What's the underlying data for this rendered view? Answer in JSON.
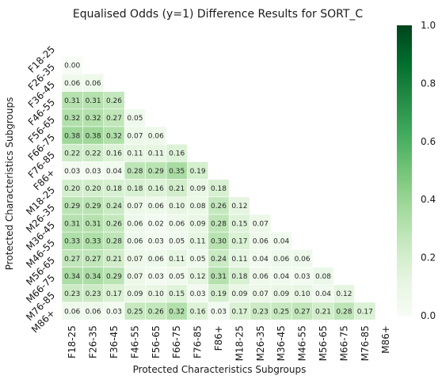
{
  "chart_data": {
    "type": "heatmap",
    "title": "Equalised Odds (y=1) Difference Results for SORT_C",
    "xlabel": "Protected Characteristics Subgroups",
    "ylabel": "Protected Characteristics Subgroups",
    "categories": [
      "F18-25",
      "F26-35",
      "F36-45",
      "F46-55",
      "F56-65",
      "F66-75",
      "F76-85",
      "F86+",
      "M18-25",
      "M26-35",
      "M36-45",
      "M46-55",
      "M56-65",
      "M66-75",
      "M76-85",
      "M86+"
    ],
    "mask": "upper-triangle-including-diagonal",
    "values": [
      [],
      [
        0.0
      ],
      [
        0.06,
        0.06
      ],
      [
        0.31,
        0.31,
        0.26
      ],
      [
        0.32,
        0.32,
        0.27,
        0.05
      ],
      [
        0.38,
        0.38,
        0.32,
        0.07,
        0.06
      ],
      [
        0.22,
        0.22,
        0.16,
        0.11,
        0.11,
        0.16
      ],
      [
        0.03,
        0.03,
        0.04,
        0.28,
        0.29,
        0.35,
        0.19
      ],
      [
        0.2,
        0.2,
        0.18,
        0.18,
        0.16,
        0.21,
        0.09,
        0.18
      ],
      [
        0.29,
        0.29,
        0.24,
        0.07,
        0.06,
        0.1,
        0.08,
        0.26,
        0.12
      ],
      [
        0.31,
        0.31,
        0.26,
        0.06,
        0.02,
        0.06,
        0.09,
        0.28,
        0.15,
        0.07
      ],
      [
        0.33,
        0.33,
        0.28,
        0.06,
        0.03,
        0.05,
        0.11,
        0.3,
        0.17,
        0.06,
        0.04
      ],
      [
        0.27,
        0.27,
        0.21,
        0.07,
        0.06,
        0.11,
        0.05,
        0.24,
        0.11,
        0.04,
        0.06,
        0.06
      ],
      [
        0.34,
        0.34,
        0.29,
        0.07,
        0.03,
        0.05,
        0.12,
        0.31,
        0.18,
        0.06,
        0.04,
        0.03,
        0.08
      ],
      [
        0.23,
        0.23,
        0.17,
        0.09,
        0.1,
        0.15,
        0.03,
        0.19,
        0.09,
        0.07,
        0.09,
        0.1,
        0.04,
        0.12
      ],
      [
        0.06,
        0.06,
        0.03,
        0.25,
        0.26,
        0.32,
        0.16,
        0.03,
        0.17,
        0.23,
        0.25,
        0.27,
        0.21,
        0.28,
        0.17
      ]
    ],
    "colorbar": {
      "min": 0.0,
      "max": 1.0,
      "ticks": [
        "0.0",
        "0.2",
        "0.4",
        "0.6",
        "0.8",
        "1.0"
      ],
      "colormap": "Greens",
      "low_color": "#f7fcf5",
      "high_color": "#00441b"
    },
    "grid": false
  }
}
